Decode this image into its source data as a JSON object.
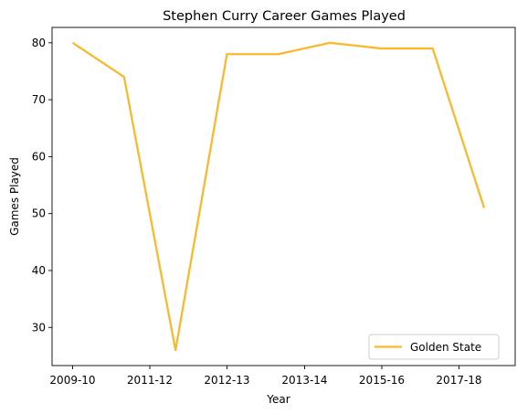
{
  "chart_data": {
    "type": "line",
    "title": "Stephen Curry Career Games Played",
    "xlabel": "Year",
    "ylabel": "Games Played",
    "x_tick_labels": [
      "2009-10",
      "2011-12",
      "2012-13",
      "2013-14",
      "2015-16",
      "2017-18"
    ],
    "y_ticks": [
      30,
      40,
      50,
      60,
      70,
      80
    ],
    "ylim": [
      23.3,
      82.7
    ],
    "grid": false,
    "legend_position": "lower-right",
    "series": [
      {
        "name": "Golden State",
        "color": "#f9b92e",
        "values": [
          80,
          74,
          26,
          78,
          78,
          80,
          79,
          79,
          51
        ]
      }
    ]
  }
}
